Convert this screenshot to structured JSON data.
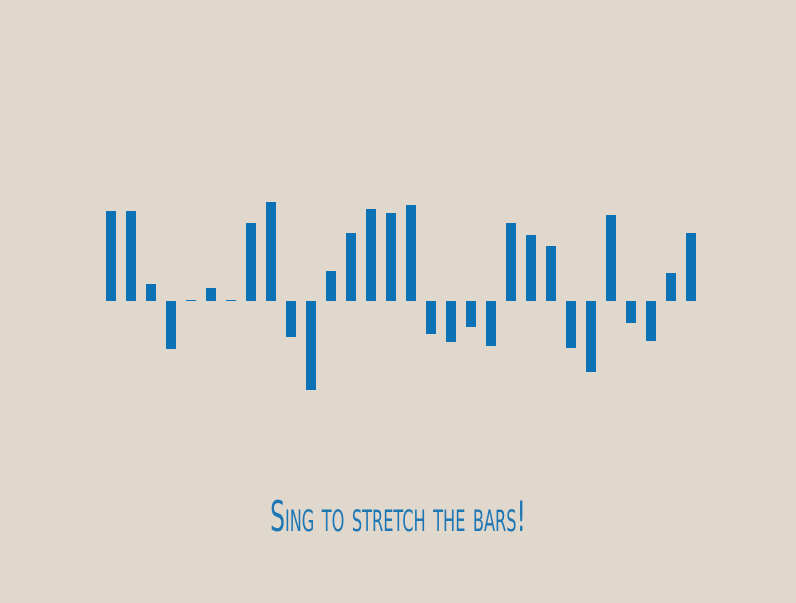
{
  "caption": "Sing to stretch the bars!",
  "colors": {
    "background": "#e0d7cd",
    "bar": "#0b73b5",
    "caption": "#1d77b4"
  },
  "bars": [
    {
      "value": 90
    },
    {
      "value": 90
    },
    {
      "value": 17
    },
    {
      "value": -48
    },
    {
      "value": 1
    },
    {
      "value": 13
    },
    {
      "value": 1
    },
    {
      "value": 78
    },
    {
      "value": 99
    },
    {
      "value": -36
    },
    {
      "value": -89
    },
    {
      "value": 30
    },
    {
      "value": 68
    },
    {
      "value": 92
    },
    {
      "value": 88
    },
    {
      "value": 96
    },
    {
      "value": -33
    },
    {
      "value": -41
    },
    {
      "value": -26
    },
    {
      "value": -45
    },
    {
      "value": 78
    },
    {
      "value": 66
    },
    {
      "value": 55
    },
    {
      "value": -47
    },
    {
      "value": -71
    },
    {
      "value": 86
    },
    {
      "value": -22
    },
    {
      "value": -40
    },
    {
      "value": 28
    },
    {
      "value": 68
    }
  ]
}
